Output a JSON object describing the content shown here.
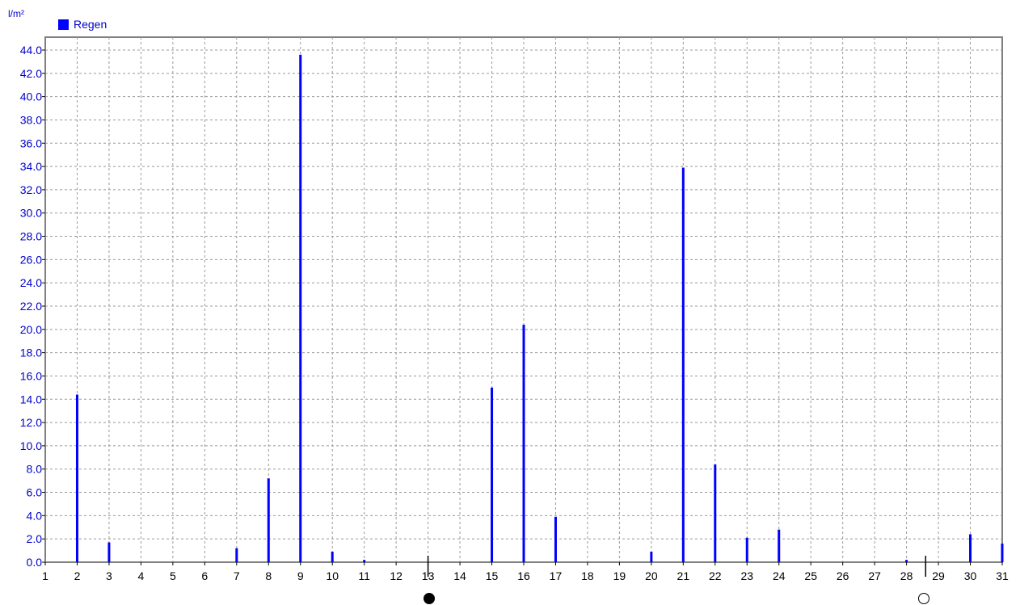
{
  "chart_data": {
    "type": "bar",
    "ylabel": "l/m²",
    "legend": [
      {
        "name": "Regen",
        "color": "#0000ff"
      }
    ],
    "ylim": [
      0,
      44
    ],
    "yticks": [
      "0.0",
      "2.0",
      "4.0",
      "6.0",
      "8.0",
      "10.0",
      "12.0",
      "14.0",
      "16.0",
      "18.0",
      "20.0",
      "22.0",
      "24.0",
      "26.0",
      "28.0",
      "30.0",
      "32.0",
      "34.0",
      "36.0",
      "38.0",
      "40.0",
      "42.0",
      "44.0"
    ],
    "categories": [
      "1",
      "2",
      "3",
      "4",
      "5",
      "6",
      "7",
      "8",
      "9",
      "10",
      "11",
      "12",
      "13",
      "14",
      "15",
      "16",
      "17",
      "18",
      "19",
      "20",
      "21",
      "22",
      "23",
      "24",
      "25",
      "26",
      "27",
      "28",
      "29",
      "30",
      "31"
    ],
    "series": [
      {
        "name": "Regen",
        "values": [
          0,
          14.4,
          1.7,
          0,
          0,
          0,
          1.2,
          7.2,
          43.6,
          0.9,
          0.2,
          0,
          0,
          0,
          15.0,
          20.4,
          3.9,
          0,
          0,
          0.9,
          33.9,
          8.4,
          2.1,
          2.8,
          0,
          0,
          0,
          0.2,
          0,
          2.4,
          1.6
        ]
      }
    ],
    "grid": true,
    "legend_position": "top-left",
    "markers": [
      {
        "type": "new-moon",
        "x": 13
      },
      {
        "type": "full-moon",
        "x": 28.6
      }
    ]
  },
  "colors": {
    "series": "#0000ff",
    "axis_text": "#0000cc",
    "grid": "#999999",
    "frame": "#808080"
  }
}
